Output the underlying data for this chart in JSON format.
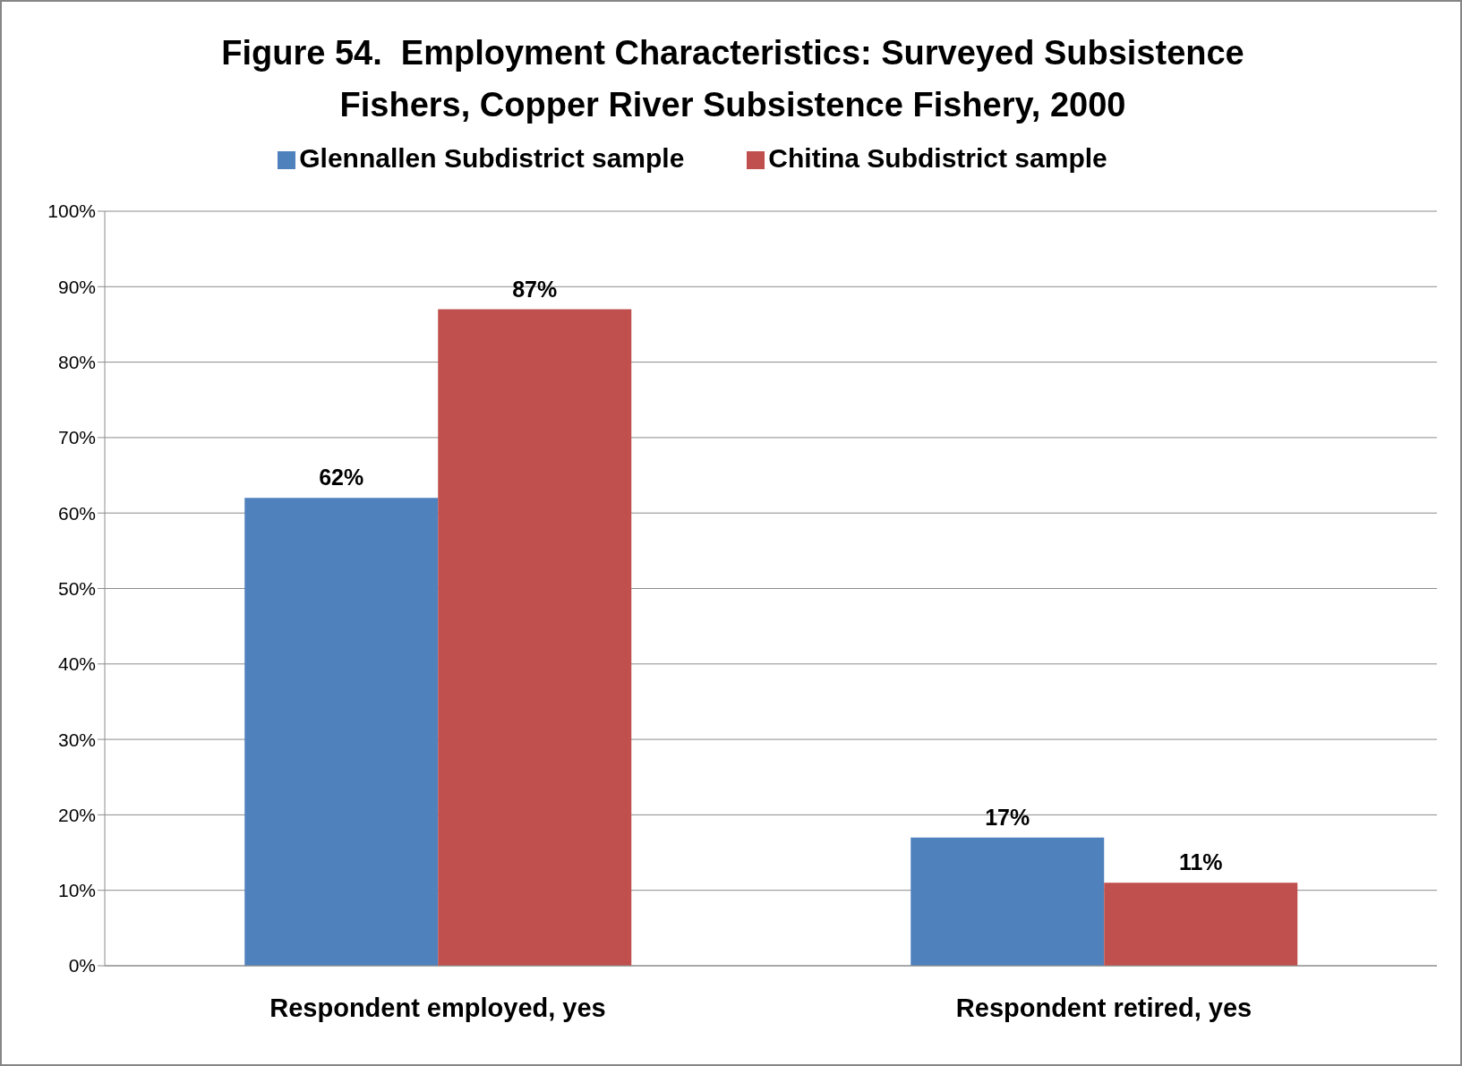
{
  "chart_data": {
    "type": "bar",
    "title": "Figure 54.  Employment Characteristics: Surveyed Subsistence Fishers, Copper River Subsistence Fishery, 2000",
    "categories": [
      "Respondent employed, yes",
      "Respondent retired, yes"
    ],
    "series": [
      {
        "name": "Glennallen Subdistrict sample",
        "color": "#4f81bd",
        "values": [
          62,
          17
        ],
        "value_labels": [
          "62%",
          "17%"
        ]
      },
      {
        "name": "Chitina Subdistrict sample",
        "color": "#c0504d",
        "values": [
          87,
          11
        ],
        "value_labels": [
          "87%",
          "11%"
        ]
      }
    ],
    "ylim": [
      0,
      100
    ],
    "yticks": [
      {
        "value": 0,
        "label": "0%"
      },
      {
        "value": 10,
        "label": "10%"
      },
      {
        "value": 20,
        "label": "20%"
      },
      {
        "value": 30,
        "label": "30%"
      },
      {
        "value": 40,
        "label": "40%"
      },
      {
        "value": 50,
        "label": "50%"
      },
      {
        "value": 60,
        "label": "60%"
      },
      {
        "value": 70,
        "label": "70%"
      },
      {
        "value": 80,
        "label": "80%"
      },
      {
        "value": 90,
        "label": "90%"
      },
      {
        "value": 100,
        "label": "100%"
      }
    ],
    "grid": "y",
    "legend": "top"
  }
}
